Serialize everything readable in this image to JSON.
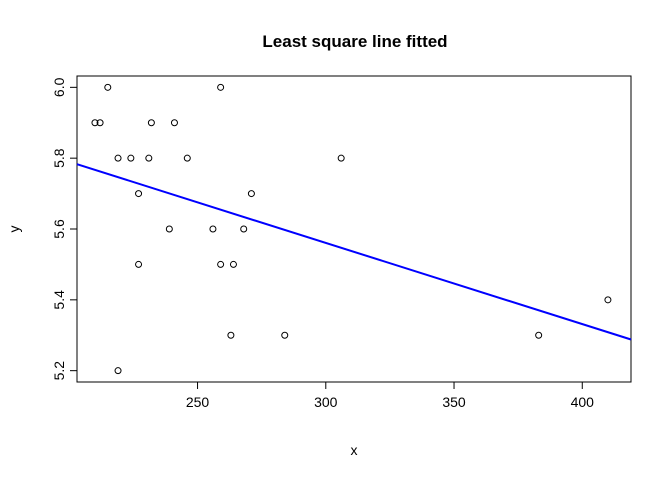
{
  "chart_data": {
    "type": "scatter",
    "title": "Least square line fitted",
    "xlabel": "x",
    "ylabel": "y",
    "xlim": [
      203,
      419
    ],
    "ylim": [
      5.168,
      6.032
    ],
    "xticks": [
      250,
      300,
      350,
      400
    ],
    "xtick_labels": [
      "250",
      "300",
      "350",
      "400"
    ],
    "yticks": [
      5.2,
      5.4,
      5.6,
      5.8,
      6.0
    ],
    "ytick_labels": [
      "5.2",
      "5.4",
      "5.6",
      "5.8",
      "6.0"
    ],
    "grid": false,
    "points": [
      {
        "x": 210,
        "y": 5.9
      },
      {
        "x": 212,
        "y": 5.9
      },
      {
        "x": 215,
        "y": 6.0
      },
      {
        "x": 219,
        "y": 5.8
      },
      {
        "x": 219,
        "y": 5.2
      },
      {
        "x": 224,
        "y": 5.8
      },
      {
        "x": 227,
        "y": 5.7
      },
      {
        "x": 227,
        "y": 5.5
      },
      {
        "x": 231,
        "y": 5.8
      },
      {
        "x": 232,
        "y": 5.9
      },
      {
        "x": 239,
        "y": 5.6
      },
      {
        "x": 241,
        "y": 5.9
      },
      {
        "x": 246,
        "y": 5.8
      },
      {
        "x": 256,
        "y": 5.6
      },
      {
        "x": 259,
        "y": 6.0
      },
      {
        "x": 259,
        "y": 5.5
      },
      {
        "x": 263,
        "y": 5.3
      },
      {
        "x": 264,
        "y": 5.5
      },
      {
        "x": 268,
        "y": 5.6
      },
      {
        "x": 271,
        "y": 5.7
      },
      {
        "x": 284,
        "y": 5.3
      },
      {
        "x": 306,
        "y": 5.8
      },
      {
        "x": 383,
        "y": 5.3
      },
      {
        "x": 410,
        "y": 5.4
      }
    ],
    "fit_line": {
      "x": [
        203,
        419
      ],
      "y": [
        5.783,
        5.288
      ],
      "color": "#0000ff"
    },
    "point_color": "#000000"
  }
}
